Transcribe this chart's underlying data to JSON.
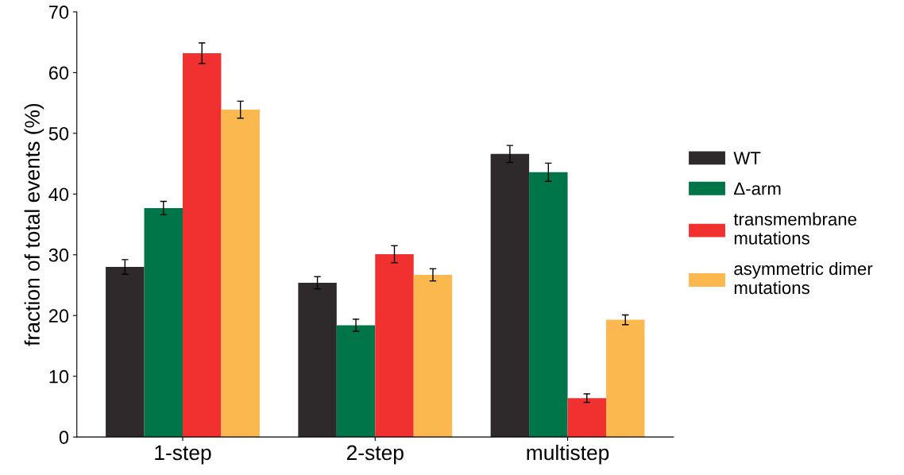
{
  "chart_data": {
    "type": "bar",
    "ylabel": "fraction of total events (%)",
    "categories": [
      "1-step",
      "2-step",
      "multistep"
    ],
    "series": [
      {
        "name": "WT",
        "color": "#2e2a2b",
        "values": [
          28.0,
          25.4,
          46.6
        ],
        "errors": [
          1.2,
          1.0,
          1.4
        ]
      },
      {
        "name": "Δ-arm",
        "color": "#007549",
        "values": [
          37.7,
          18.4,
          43.6
        ],
        "errors": [
          1.1,
          1.0,
          1.5
        ]
      },
      {
        "name": "transmembrane\nmutations",
        "color": "#f0312f",
        "values": [
          63.2,
          30.1,
          6.4
        ],
        "errors": [
          1.7,
          1.4,
          0.7
        ]
      },
      {
        "name": "asymmetric dimer\nmutations",
        "color": "#fbb84e",
        "values": [
          53.9,
          26.7,
          19.3
        ],
        "errors": [
          1.4,
          1.0,
          0.8
        ]
      }
    ],
    "ylim": [
      0,
      70
    ],
    "yticks": [
      0,
      10,
      20,
      30,
      40,
      50,
      60,
      70
    ],
    "grid": false,
    "legend": "right"
  }
}
